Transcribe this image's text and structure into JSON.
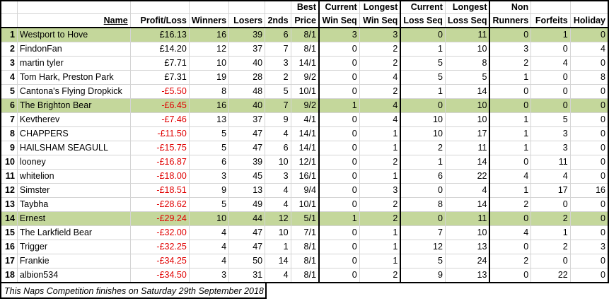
{
  "colors": {
    "highlight": "#c4d79b",
    "negative": "#e00000"
  },
  "headers": {
    "row1": {
      "best": "Best",
      "current_win": "Current",
      "longest_win": "Longest",
      "current_loss": "Current",
      "longest_loss": "Longest",
      "non": "Non"
    },
    "row2": {
      "name": "Name",
      "profit": "Profit/Loss",
      "winners": "Winners",
      "losers": "Losers",
      "seconds": "2nds",
      "price": "Price",
      "win_seq": "Win Seq",
      "win_seq2": "Win Seq",
      "loss_seq": "Loss Seq",
      "loss_seq2": "Loss Seq",
      "runners": "Runners",
      "forfeits": "Forfeits",
      "holiday": "Holiday"
    }
  },
  "rows": [
    {
      "rank": "1",
      "name": "Westport to Hove",
      "profit": "£16.13",
      "neg": false,
      "hl": true,
      "winners": "16",
      "losers": "39",
      "seconds": "6",
      "price": "8/1",
      "cws": "3",
      "lws": "3",
      "cls": "0",
      "lls": "11",
      "nr": "0",
      "ff": "1",
      "hol": "0"
    },
    {
      "rank": "2",
      "name": "FindonFan",
      "profit": "£14.20",
      "neg": false,
      "hl": false,
      "winners": "12",
      "losers": "37",
      "seconds": "7",
      "price": "8/1",
      "cws": "0",
      "lws": "2",
      "cls": "1",
      "lls": "10",
      "nr": "3",
      "ff": "0",
      "hol": "4"
    },
    {
      "rank": "3",
      "name": "martin tyler",
      "profit": "£7.71",
      "neg": false,
      "hl": false,
      "winners": "10",
      "losers": "40",
      "seconds": "3",
      "price": "14/1",
      "cws": "0",
      "lws": "2",
      "cls": "5",
      "lls": "8",
      "nr": "2",
      "ff": "4",
      "hol": "0"
    },
    {
      "rank": "4",
      "name": "Tom Hark, Preston Park",
      "profit": "£7.31",
      "neg": false,
      "hl": false,
      "winners": "19",
      "losers": "28",
      "seconds": "2",
      "price": "9/2",
      "cws": "0",
      "lws": "4",
      "cls": "5",
      "lls": "5",
      "nr": "1",
      "ff": "0",
      "hol": "8"
    },
    {
      "rank": "5",
      "name": "Cantona's Flying Dropkick",
      "profit": "-£5.50",
      "neg": true,
      "hl": false,
      "winners": "8",
      "losers": "48",
      "seconds": "5",
      "price": "10/1",
      "cws": "0",
      "lws": "2",
      "cls": "1",
      "lls": "14",
      "nr": "0",
      "ff": "0",
      "hol": "0"
    },
    {
      "rank": "6",
      "name": "The Brighton Bear",
      "profit": "-£6.45",
      "neg": true,
      "hl": true,
      "winners": "16",
      "losers": "40",
      "seconds": "7",
      "price": "9/2",
      "cws": "1",
      "lws": "4",
      "cls": "0",
      "lls": "10",
      "nr": "0",
      "ff": "0",
      "hol": "0"
    },
    {
      "rank": "7",
      "name": "Kevtherev",
      "profit": "-£7.46",
      "neg": true,
      "hl": false,
      "winners": "13",
      "losers": "37",
      "seconds": "9",
      "price": "4/1",
      "cws": "0",
      "lws": "4",
      "cls": "10",
      "lls": "10",
      "nr": "1",
      "ff": "5",
      "hol": "0"
    },
    {
      "rank": "8",
      "name": "CHAPPERS",
      "profit": "-£11.50",
      "neg": true,
      "hl": false,
      "winners": "5",
      "losers": "47",
      "seconds": "4",
      "price": "14/1",
      "cws": "0",
      "lws": "1",
      "cls": "10",
      "lls": "17",
      "nr": "1",
      "ff": "3",
      "hol": "0"
    },
    {
      "rank": "9",
      "name": "HAILSHAM SEAGULL",
      "profit": "-£15.75",
      "neg": true,
      "hl": false,
      "winners": "5",
      "losers": "47",
      "seconds": "6",
      "price": "14/1",
      "cws": "0",
      "lws": "1",
      "cls": "2",
      "lls": "11",
      "nr": "1",
      "ff": "3",
      "hol": "0"
    },
    {
      "rank": "10",
      "name": "looney",
      "profit": "-£16.87",
      "neg": true,
      "hl": false,
      "winners": "6",
      "losers": "39",
      "seconds": "10",
      "price": "12/1",
      "cws": "0",
      "lws": "2",
      "cls": "1",
      "lls": "14",
      "nr": "0",
      "ff": "11",
      "hol": "0"
    },
    {
      "rank": "11",
      "name": "whitelion",
      "profit": "-£18.00",
      "neg": true,
      "hl": false,
      "winners": "3",
      "losers": "45",
      "seconds": "3",
      "price": "16/1",
      "cws": "0",
      "lws": "1",
      "cls": "6",
      "lls": "22",
      "nr": "4",
      "ff": "4",
      "hol": "0"
    },
    {
      "rank": "12",
      "name": "Simster",
      "profit": "-£18.51",
      "neg": true,
      "hl": false,
      "winners": "9",
      "losers": "13",
      "seconds": "4",
      "price": "9/4",
      "cws": "0",
      "lws": "3",
      "cls": "0",
      "lls": "4",
      "nr": "1",
      "ff": "17",
      "hol": "16"
    },
    {
      "rank": "13",
      "name": "Taybha",
      "profit": "-£28.62",
      "neg": true,
      "hl": false,
      "winners": "5",
      "losers": "49",
      "seconds": "4",
      "price": "10/1",
      "cws": "0",
      "lws": "2",
      "cls": "8",
      "lls": "14",
      "nr": "2",
      "ff": "0",
      "hol": "0"
    },
    {
      "rank": "14",
      "name": "Ernest",
      "profit": "-£29.24",
      "neg": true,
      "hl": true,
      "winners": "10",
      "losers": "44",
      "seconds": "12",
      "price": "5/1",
      "cws": "1",
      "lws": "2",
      "cls": "0",
      "lls": "11",
      "nr": "0",
      "ff": "2",
      "hol": "0"
    },
    {
      "rank": "15",
      "name": "The Larkfield Bear",
      "profit": "-£32.00",
      "neg": true,
      "hl": false,
      "winners": "4",
      "losers": "47",
      "seconds": "10",
      "price": "7/1",
      "cws": "0",
      "lws": "1",
      "cls": "7",
      "lls": "10",
      "nr": "4",
      "ff": "1",
      "hol": "0"
    },
    {
      "rank": "16",
      "name": "Trigger",
      "profit": "-£32.25",
      "neg": true,
      "hl": false,
      "winners": "4",
      "losers": "47",
      "seconds": "1",
      "price": "8/1",
      "cws": "0",
      "lws": "1",
      "cls": "12",
      "lls": "13",
      "nr": "0",
      "ff": "2",
      "hol": "3"
    },
    {
      "rank": "17",
      "name": "Frankie",
      "profit": "-£34.25",
      "neg": true,
      "hl": false,
      "winners": "4",
      "losers": "50",
      "seconds": "14",
      "price": "8/1",
      "cws": "0",
      "lws": "1",
      "cls": "5",
      "lls": "24",
      "nr": "2",
      "ff": "0",
      "hol": "0"
    },
    {
      "rank": "18",
      "name": "albion534",
      "profit": "-£34.50",
      "neg": true,
      "hl": false,
      "winners": "3",
      "losers": "31",
      "seconds": "4",
      "price": "8/1",
      "cws": "0",
      "lws": "2",
      "cls": "9",
      "lls": "13",
      "nr": "0",
      "ff": "22",
      "hol": "0"
    }
  ],
  "footer": "This Naps Competition finishes on Saturday 29th September 2018"
}
